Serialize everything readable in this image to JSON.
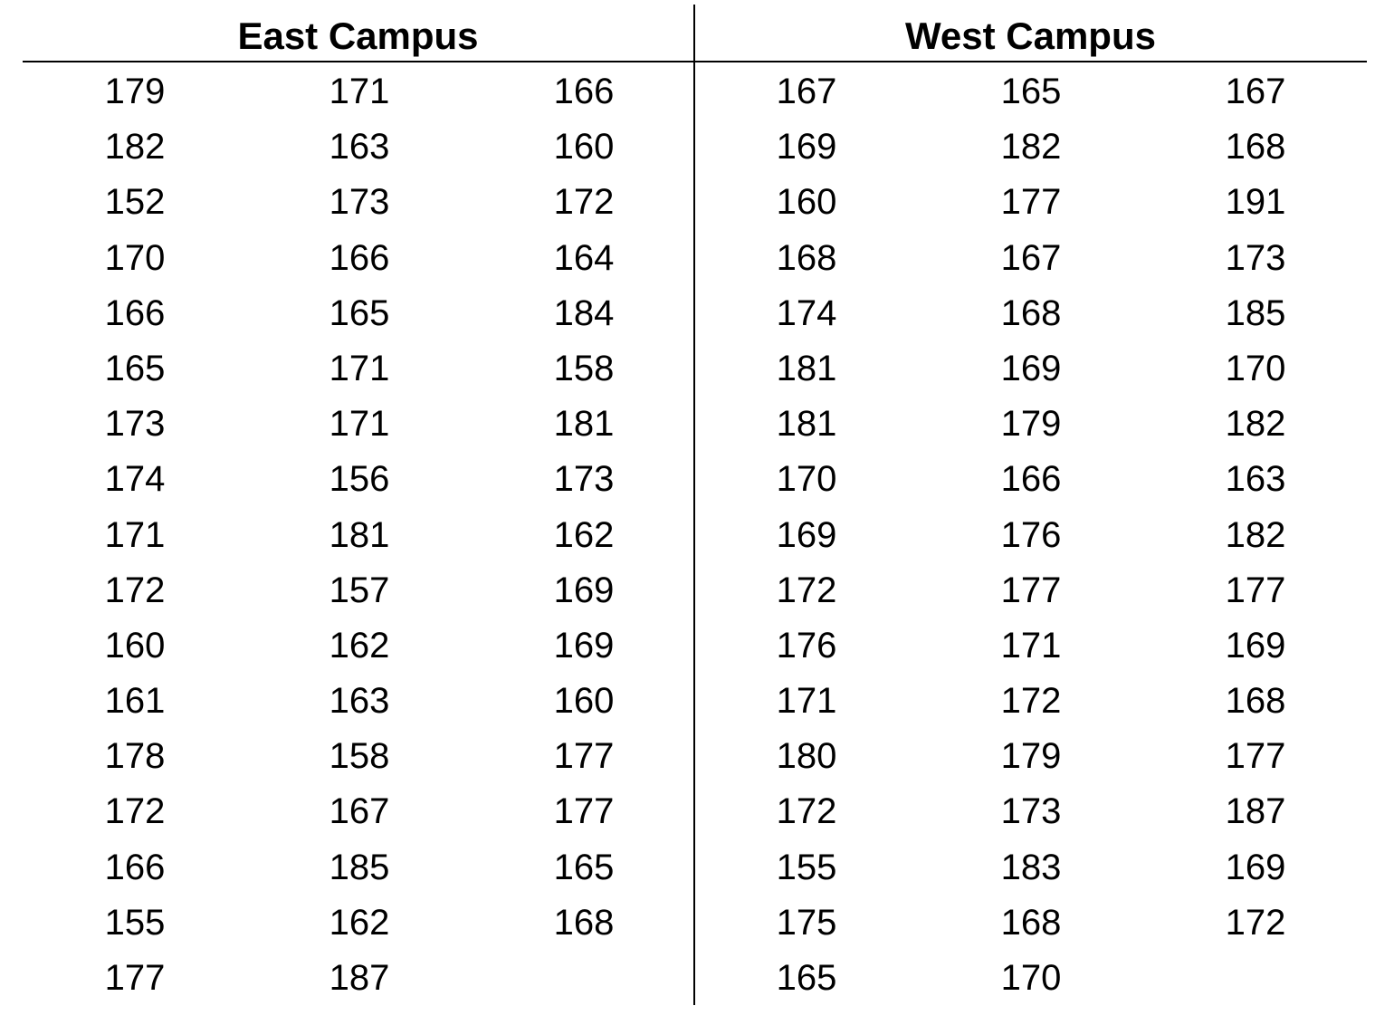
{
  "table": {
    "east": {
      "heading": "East Campus",
      "columns": [
        [
          "179",
          "182",
          "152",
          "170",
          "166",
          "165",
          "173",
          "174",
          "171",
          "172",
          "160",
          "161",
          "178",
          "172",
          "166",
          "155",
          "177"
        ],
        [
          "171",
          "163",
          "173",
          "166",
          "165",
          "171",
          "171",
          "156",
          "181",
          "157",
          "162",
          "163",
          "158",
          "167",
          "185",
          "162",
          "187"
        ],
        [
          "166",
          "160",
          "172",
          "164",
          "184",
          "158",
          "181",
          "173",
          "162",
          "169",
          "169",
          "160",
          "177",
          "177",
          "165",
          "168"
        ]
      ]
    },
    "west": {
      "heading": "West Campus",
      "columns": [
        [
          "167",
          "169",
          "160",
          "168",
          "174",
          "181",
          "181",
          "170",
          "169",
          "172",
          "176",
          "171",
          "180",
          "172",
          "155",
          "175",
          "165"
        ],
        [
          "165",
          "182",
          "177",
          "167",
          "168",
          "169",
          "179",
          "166",
          "176",
          "177",
          "171",
          "172",
          "179",
          "173",
          "183",
          "168",
          "170"
        ],
        [
          "167",
          "168",
          "191",
          "173",
          "185",
          "170",
          "182",
          "163",
          "182",
          "177",
          "169",
          "168",
          "177",
          "187",
          "169",
          "172"
        ]
      ]
    }
  }
}
